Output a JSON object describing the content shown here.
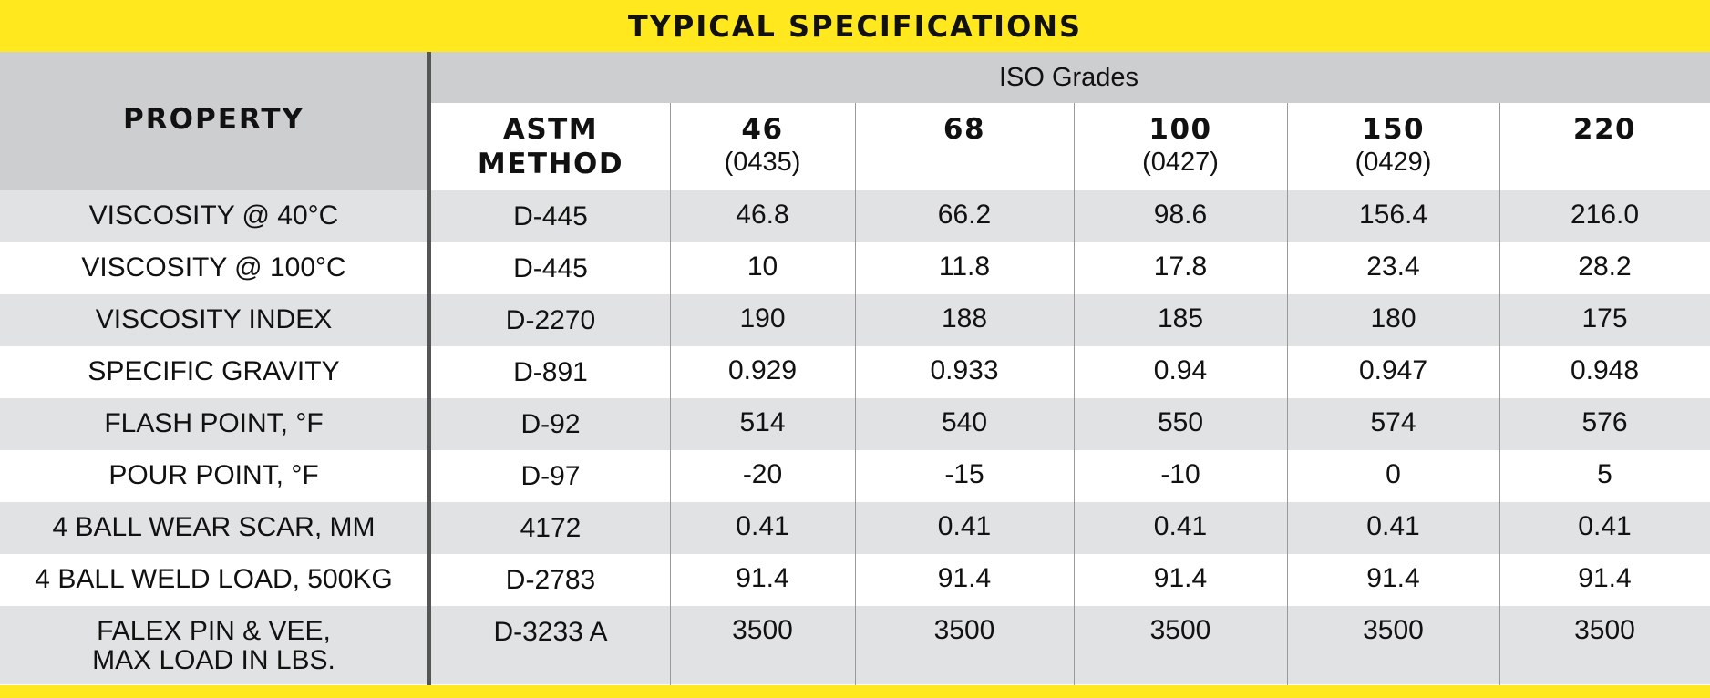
{
  "title": "TYPICAL SPECIFICATIONS",
  "header": {
    "property": "PROPERTY",
    "group_label": "ISO Grades",
    "method_line1": "ASTM",
    "method_line2": "METHOD",
    "grades": [
      {
        "grade": "46",
        "code": "(0435)"
      },
      {
        "grade": "68",
        "code": ""
      },
      {
        "grade": "100",
        "code": "(0427)"
      },
      {
        "grade": "150",
        "code": "(0429)"
      },
      {
        "grade": "220",
        "code": ""
      }
    ]
  },
  "rows": [
    {
      "property": "VISCOSITY @ 40°C",
      "method": "D-445",
      "values": [
        "46.8",
        "66.2",
        "98.6",
        "156.4",
        "216.0"
      ]
    },
    {
      "property": "VISCOSITY @ 100°C",
      "method": "D-445",
      "values": [
        "10",
        "11.8",
        "17.8",
        "23.4",
        "28.2"
      ]
    },
    {
      "property": "VISCOSITY INDEX",
      "method": "D-2270",
      "values": [
        "190",
        "188",
        "185",
        "180",
        "175"
      ]
    },
    {
      "property": "SPECIFIC GRAVITY",
      "method": "D-891",
      "values": [
        "0.929",
        "0.933",
        "0.94",
        "0.947",
        "0.948"
      ]
    },
    {
      "property": "FLASH POINT, °F",
      "method": "D-92",
      "values": [
        "514",
        "540",
        "550",
        "574",
        "576"
      ]
    },
    {
      "property": "POUR POINT, °F",
      "method": "D-97",
      "values": [
        "-20",
        "-15",
        "-10",
        "0",
        "5"
      ]
    },
    {
      "property": "4 BALL WEAR SCAR, MM",
      "method": "4172",
      "values": [
        "0.41",
        "0.41",
        "0.41",
        "0.41",
        "0.41"
      ]
    },
    {
      "property": "4 BALL WELD LOAD, 500KG",
      "method": "D-2783",
      "values": [
        "91.4",
        "91.4",
        "91.4",
        "91.4",
        "91.4"
      ]
    },
    {
      "property": "FALEX PIN & VEE,",
      "property_line2": "MAX LOAD IN LBS.",
      "method": "D-3233 A",
      "values": [
        "3500",
        "3500",
        "3500",
        "3500",
        "3500"
      ]
    }
  ],
  "colors": {
    "band": "#ffe81d",
    "header_gray": "#cdcecf",
    "row_shade": "#e1e2e3"
  }
}
